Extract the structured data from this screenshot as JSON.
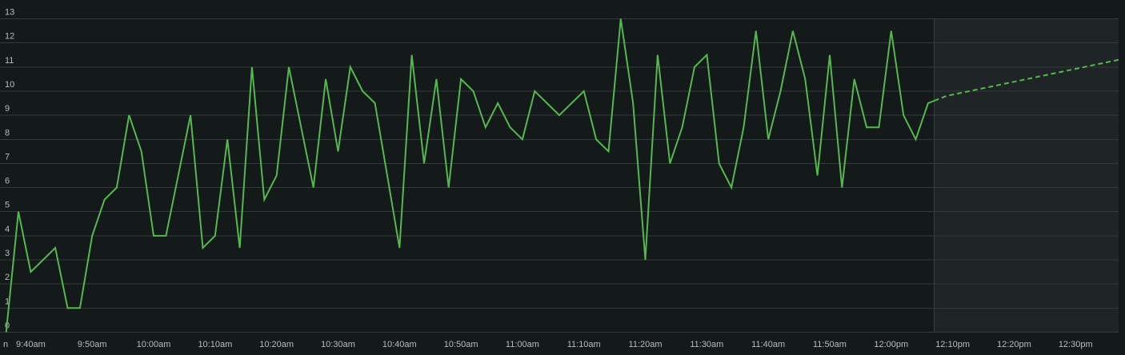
{
  "chart_data": {
    "type": "line",
    "title": "",
    "xlabel": "",
    "ylabel": "",
    "ylim": [
      0,
      13
    ],
    "y_ticks": [
      0,
      1,
      2,
      3,
      4,
      5,
      6,
      7,
      8,
      9,
      10,
      11,
      12,
      13
    ],
    "x_tick_labels": [
      "9:40am",
      "9:50am",
      "10:00am",
      "10:10am",
      "10:20am",
      "10:30am",
      "10:40am",
      "10:50am",
      "11:00am",
      "11:10am",
      "11:20am",
      "11:30am",
      "11:40am",
      "11:50am",
      "12:00pm",
      "12:10pm",
      "12:20pm",
      "12:30pm"
    ],
    "x_tick_minutes": [
      580,
      590,
      600,
      610,
      620,
      630,
      640,
      650,
      660,
      670,
      680,
      690,
      700,
      710,
      720,
      730,
      740,
      750
    ],
    "xlim_minutes": [
      575,
      757
    ],
    "cutoff_minute": 727,
    "corner_label": "n",
    "grid": true,
    "colors": {
      "series": "#55b84f",
      "background": "#141919",
      "grid": "#333a3b",
      "forecast_region": "#1f2426"
    },
    "series": [
      {
        "style": "solid",
        "points": [
          [
            576,
            0
          ],
          [
            578,
            5
          ],
          [
            580,
            2.5
          ],
          [
            584,
            3.5
          ],
          [
            586,
            1
          ],
          [
            588,
            1
          ],
          [
            590,
            4
          ],
          [
            592,
            5.5
          ],
          [
            594,
            6
          ],
          [
            596,
            9
          ],
          [
            598,
            7.5
          ],
          [
            600,
            4
          ],
          [
            602,
            4
          ],
          [
            606,
            9
          ],
          [
            608,
            3.5
          ],
          [
            610,
            4
          ],
          [
            612,
            8
          ],
          [
            614,
            3.5
          ],
          [
            616,
            11
          ],
          [
            618,
            5.5
          ],
          [
            620,
            6.5
          ],
          [
            622,
            11
          ],
          [
            626,
            6
          ],
          [
            628,
            10.5
          ],
          [
            630,
            7.5
          ],
          [
            632,
            11
          ],
          [
            634,
            10
          ],
          [
            636,
            9.5
          ],
          [
            640,
            3.5
          ],
          [
            642,
            11.5
          ],
          [
            644,
            7
          ],
          [
            646,
            10.5
          ],
          [
            648,
            6
          ],
          [
            650,
            10.5
          ],
          [
            652,
            10
          ],
          [
            654,
            8.5
          ],
          [
            656,
            9.5
          ],
          [
            658,
            8.5
          ],
          [
            660,
            8
          ],
          [
            662,
            10
          ],
          [
            666,
            9
          ],
          [
            670,
            10
          ],
          [
            672,
            8
          ],
          [
            674,
            7.5
          ],
          [
            676,
            13
          ],
          [
            678,
            9.5
          ],
          [
            680,
            3
          ],
          [
            682,
            11.5
          ],
          [
            684,
            7
          ],
          [
            686,
            8.5
          ],
          [
            688,
            11
          ],
          [
            690,
            11.5
          ],
          [
            692,
            7
          ],
          [
            694,
            6
          ],
          [
            696,
            8.5
          ],
          [
            698,
            12.5
          ],
          [
            700,
            8
          ],
          [
            702,
            10
          ],
          [
            704,
            12.5
          ],
          [
            706,
            10.5
          ],
          [
            708,
            6.5
          ],
          [
            710,
            11.5
          ],
          [
            712,
            6
          ],
          [
            714,
            10.5
          ],
          [
            716,
            8.5
          ],
          [
            718,
            8.5
          ],
          [
            720,
            12.5
          ],
          [
            722,
            9
          ],
          [
            724,
            8
          ],
          [
            726,
            9.5
          ],
          [
            727,
            9.6
          ]
        ]
      },
      {
        "style": "dashed",
        "points": [
          [
            727,
            9.6
          ],
          [
            729,
            9.8
          ],
          [
            757,
            11.3
          ]
        ]
      }
    ]
  }
}
